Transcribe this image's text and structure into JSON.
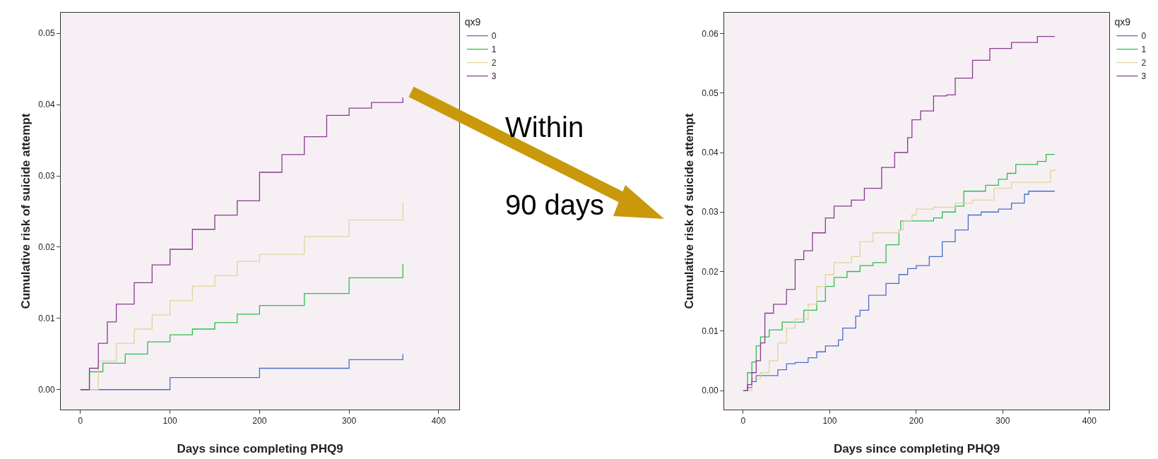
{
  "chart_data": [
    {
      "type": "step",
      "xlabel": "Days since completing PHQ9",
      "ylabel": "Cumulative risk of suicide attempt",
      "legend_title": "qx9",
      "legend": "top right",
      "grid": false,
      "xlim": [
        -22,
        423
      ],
      "xticks": [
        0,
        100,
        200,
        300,
        400
      ],
      "ylim": [
        -0.0028,
        0.0529
      ],
      "yticks": [
        {
          "value": 0,
          "label": "0.00"
        },
        {
          "value": 0.01,
          "label": "0.01"
        },
        {
          "value": 0.02,
          "label": "0.02"
        },
        {
          "value": 0.03,
          "label": "0.03"
        },
        {
          "value": 0.04,
          "label": "0.04"
        },
        {
          "value": 0.05,
          "label": "0.05"
        }
      ],
      "annotations": [
        "Within 90 days"
      ],
      "series": [
        {
          "name": "0",
          "color": "#4a6ccc",
          "x": [
            0,
            100,
            200,
            300,
            360
          ],
          "values": [
            0,
            0.0017,
            0.003,
            0.0042,
            0.005
          ]
        },
        {
          "name": "1",
          "color": "#2ebd4a",
          "x": [
            0,
            10,
            25,
            50,
            75,
            100,
            125,
            150,
            175,
            200,
            250,
            300,
            360
          ],
          "values": [
            0,
            0.0025,
            0.0037,
            0.005,
            0.0067,
            0.0077,
            0.0085,
            0.0094,
            0.0106,
            0.0118,
            0.0135,
            0.0157,
            0.0176
          ]
        },
        {
          "name": "2",
          "color": "#e0d39a",
          "x": [
            0,
            20,
            40,
            60,
            80,
            100,
            125,
            150,
            175,
            200,
            250,
            300,
            360
          ],
          "values": [
            0,
            0.004,
            0.0065,
            0.0085,
            0.0105,
            0.0125,
            0.0145,
            0.016,
            0.018,
            0.019,
            0.0215,
            0.0238,
            0.0264
          ]
        },
        {
          "name": "3",
          "color": "#8b3a8f",
          "x": [
            0,
            10,
            20,
            30,
            40,
            60,
            80,
            100,
            125,
            150,
            175,
            200,
            225,
            250,
            275,
            300,
            325,
            360
          ],
          "values": [
            0,
            0.003,
            0.0065,
            0.0095,
            0.012,
            0.015,
            0.0175,
            0.0197,
            0.0225,
            0.0245,
            0.0265,
            0.0305,
            0.033,
            0.0355,
            0.0385,
            0.0395,
            0.0403,
            0.041
          ]
        }
      ]
    },
    {
      "type": "step",
      "xlabel": "Days since completing PHQ9",
      "ylabel": "Cumulative risk of suicide attempt",
      "legend_title": "qx9",
      "legend": "top right",
      "grid": false,
      "xlim": [
        -22,
        423
      ],
      "xticks": [
        0,
        100,
        200,
        300,
        400
      ],
      "ylim": [
        -0.0032,
        0.0635
      ],
      "yticks": [
        {
          "value": 0,
          "label": "0.00"
        },
        {
          "value": 0.01,
          "label": "0.01"
        },
        {
          "value": 0.02,
          "label": "0.02"
        },
        {
          "value": 0.03,
          "label": "0.03"
        },
        {
          "value": 0.04,
          "label": "0.04"
        },
        {
          "value": 0.05,
          "label": "0.05"
        },
        {
          "value": 0.06,
          "label": "0.06"
        }
      ],
      "series": [
        {
          "name": "0",
          "color": "#4a6ccc",
          "x": [
            0,
            5,
            10,
            15,
            30,
            40,
            50,
            60,
            75,
            85,
            95,
            110,
            115,
            130,
            135,
            145,
            165,
            180,
            190,
            200,
            215,
            230,
            245,
            260,
            275,
            295,
            310,
            325,
            330,
            360
          ],
          "values": [
            0,
            0.0005,
            0.0015,
            0.0025,
            0.0025,
            0.0035,
            0.0045,
            0.0047,
            0.0055,
            0.0065,
            0.0075,
            0.0085,
            0.0105,
            0.0125,
            0.0135,
            0.016,
            0.018,
            0.0195,
            0.0205,
            0.021,
            0.0225,
            0.025,
            0.027,
            0.0295,
            0.03,
            0.0305,
            0.0315,
            0.033,
            0.0335,
            0.0335
          ]
        },
        {
          "name": "1",
          "color": "#2ebd4a",
          "x": [
            0,
            5,
            10,
            15,
            20,
            30,
            45,
            70,
            85,
            95,
            105,
            120,
            135,
            150,
            165,
            180,
            182,
            205,
            220,
            230,
            245,
            255,
            280,
            295,
            305,
            315,
            340,
            350,
            360
          ],
          "values": [
            0,
            0.003,
            0.0048,
            0.0075,
            0.009,
            0.0102,
            0.0115,
            0.0135,
            0.015,
            0.0175,
            0.019,
            0.02,
            0.021,
            0.0215,
            0.0245,
            0.027,
            0.0285,
            0.0285,
            0.029,
            0.03,
            0.031,
            0.0335,
            0.0345,
            0.0355,
            0.0365,
            0.038,
            0.0385,
            0.0397,
            0.0397
          ]
        },
        {
          "name": "2",
          "color": "#e0d39a",
          "x": [
            0,
            10,
            20,
            30,
            40,
            50,
            60,
            75,
            85,
            95,
            105,
            125,
            135,
            150,
            180,
            185,
            195,
            200,
            220,
            245,
            265,
            290,
            310,
            350,
            355,
            360
          ],
          "values": [
            0,
            0.002,
            0.003,
            0.005,
            0.008,
            0.0105,
            0.012,
            0.0145,
            0.0175,
            0.0195,
            0.0215,
            0.0225,
            0.025,
            0.0265,
            0.027,
            0.0285,
            0.0295,
            0.0305,
            0.0308,
            0.0315,
            0.032,
            0.034,
            0.035,
            0.035,
            0.037,
            0.0372
          ]
        },
        {
          "name": "3",
          "color": "#8b3a8f",
          "x": [
            0,
            5,
            10,
            15,
            20,
            25,
            35,
            50,
            60,
            70,
            80,
            95,
            105,
            125,
            140,
            160,
            175,
            190,
            195,
            205,
            220,
            235,
            245,
            265,
            285,
            310,
            340,
            360
          ],
          "values": [
            0,
            0.001,
            0.003,
            0.005,
            0.008,
            0.013,
            0.0145,
            0.017,
            0.022,
            0.0235,
            0.0265,
            0.029,
            0.031,
            0.032,
            0.034,
            0.0375,
            0.04,
            0.0425,
            0.0455,
            0.047,
            0.0495,
            0.0497,
            0.0525,
            0.0555,
            0.0575,
            0.0585,
            0.0595,
            0.0595
          ]
        }
      ]
    }
  ]
}
